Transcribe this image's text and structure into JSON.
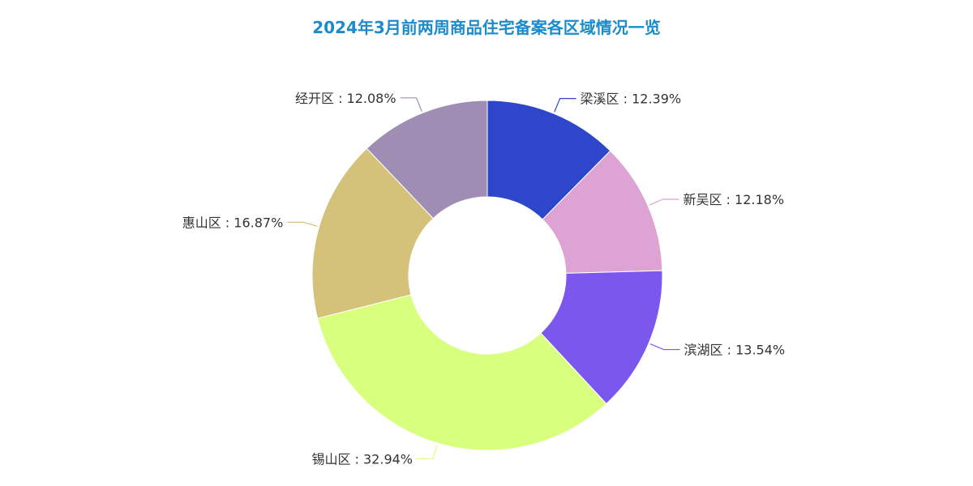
{
  "chart_data": {
    "type": "pie",
    "title": "2024年3月前两周商品住宅备案各区域情况一览",
    "slices": [
      {
        "label": "梁溪区",
        "value": 12.39,
        "display": "梁溪区 : 12.39%",
        "color": "#2e46c9"
      },
      {
        "label": "新吴区",
        "value": 12.18,
        "display": "新吴区 : 12.18%",
        "color": "#dda3d4"
      },
      {
        "label": "滨湖区",
        "value": 13.54,
        "display": "滨湖区 : 13.54%",
        "color": "#7b57ee"
      },
      {
        "label": "锡山区",
        "value": 32.94,
        "display": "锡山区 : 32.94%",
        "color": "#d8ff7d"
      },
      {
        "label": "惠山区",
        "value": 16.87,
        "display": "惠山区 : 16.87%",
        "color": "#d5c27a"
      },
      {
        "label": "经开区",
        "value": 12.08,
        "display": "经开区 : 12.08%",
        "color": "#a08db4"
      }
    ],
    "donut": true,
    "legend": "none",
    "start_angle": "top, clockwise"
  }
}
